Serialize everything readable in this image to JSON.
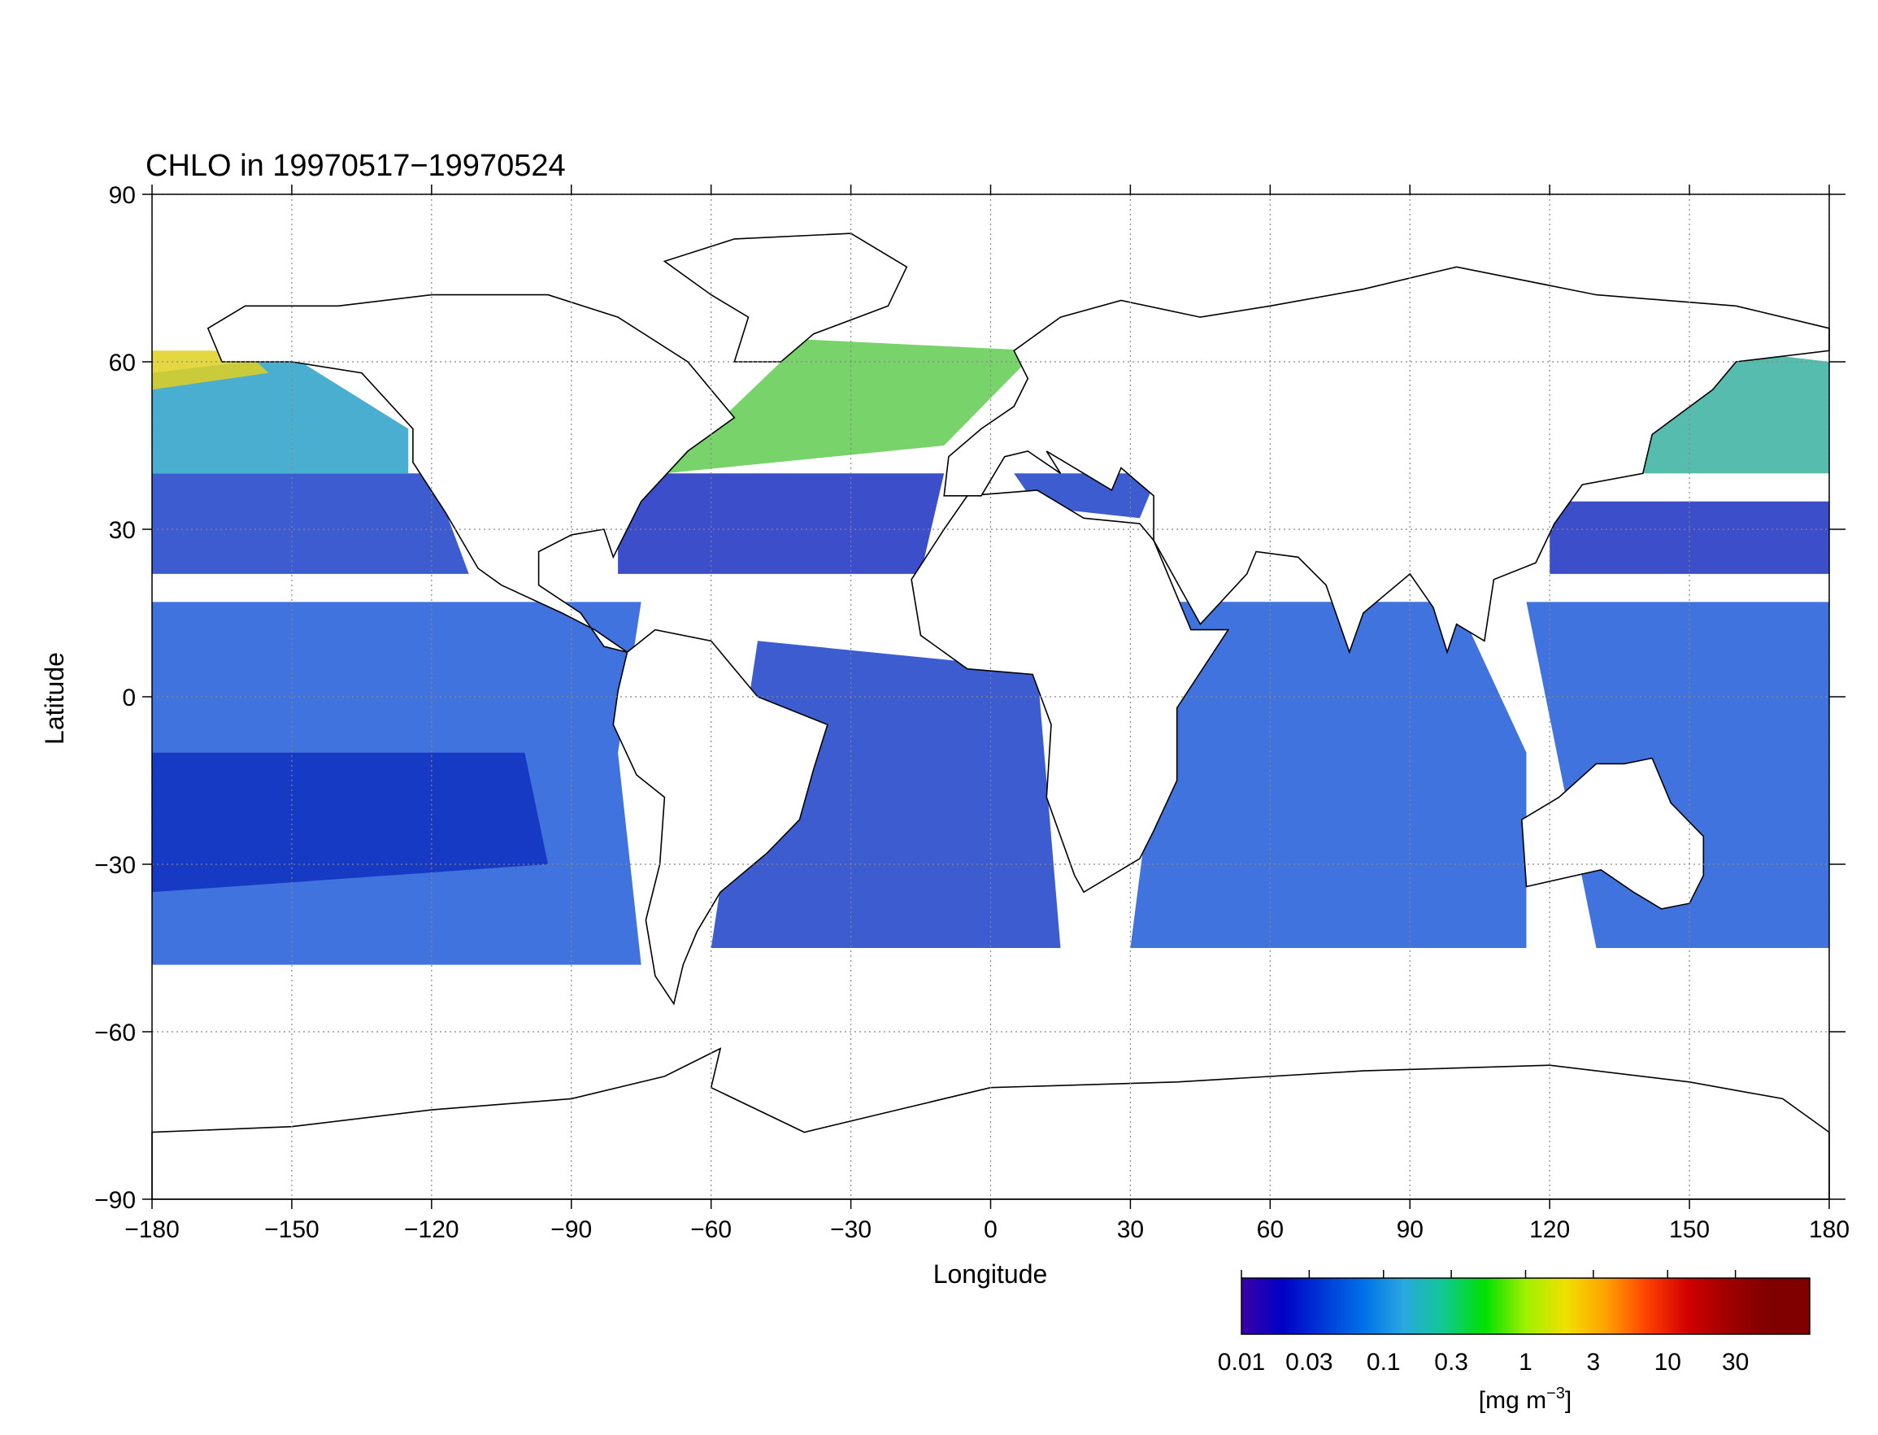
{
  "chart_data": {
    "type": "map",
    "title": "CHLO in 19970517−19970524",
    "xlabel": "Longitude",
    "ylabel": "Latitude",
    "xlim": [
      -180,
      180
    ],
    "ylim": [
      -90,
      90
    ],
    "xticks": [
      {
        "value": -180,
        "label": "−180"
      },
      {
        "value": -150,
        "label": "−150"
      },
      {
        "value": -120,
        "label": "−120"
      },
      {
        "value": -90,
        "label": "−90"
      },
      {
        "value": -60,
        "label": "−60"
      },
      {
        "value": -30,
        "label": "−30"
      },
      0,
      30,
      60,
      90,
      120,
      150,
      180
    ],
    "yticks": [
      {
        "value": -90,
        "label": "−90"
      },
      {
        "value": -60,
        "label": "−60"
      },
      {
        "value": -30,
        "label": "−30"
      },
      0,
      30,
      60,
      90
    ],
    "grid": true,
    "colorbar": {
      "log": true,
      "lim": [
        0.01,
        100
      ],
      "ticks": [
        0.01,
        0.03,
        0.1,
        0.3,
        1,
        3,
        10,
        30
      ],
      "label": [
        "[mg m",
        "−3",
        "]"
      ],
      "colors": [
        "#3b00a8",
        "#0000c4",
        "#0038d8",
        "#0070e8",
        "#2aa8e0",
        "#10c890",
        "#00e000",
        "#a0f000",
        "#f0e000",
        "#ffa000",
        "#ff4000",
        "#d00000",
        "#a00000",
        "#800000",
        "#800000"
      ]
    }
  }
}
